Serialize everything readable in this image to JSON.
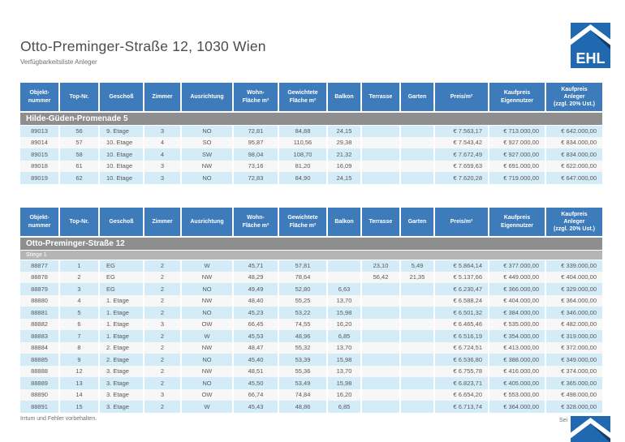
{
  "header": {
    "title": "Otto-Preminger-Straße 12, 1030 Wien",
    "subtitle": "Verfügbarkeitsliste Anleger"
  },
  "logo": {
    "text": "EHL"
  },
  "footer": {
    "left_text": "Irrtum und Fehler vorbehalten.",
    "page_text": "Sei"
  },
  "colors": {
    "header-blue": "#3e7bba",
    "section-gray": "#8e8e8e",
    "subsection-gray": "#b5b5b5",
    "row-blue": "#d4ecf8",
    "row-white": "#f7f7f7",
    "text-gray": "#57585a",
    "title-gray": "#4c4c4e",
    "logo-blue": "#2068af",
    "logo-navy": "#173a66"
  },
  "columns": [
    {
      "id": "objektnummer",
      "label": [
        "Objekt-",
        "nummer"
      ]
    },
    {
      "id": "top-nr",
      "label": [
        "Top-Nr."
      ]
    },
    {
      "id": "geschoss",
      "label": [
        "Geschoß"
      ]
    },
    {
      "id": "zimmer",
      "label": [
        "Zimmer"
      ]
    },
    {
      "id": "ausrichtung",
      "label": [
        "Ausrichtung"
      ]
    },
    {
      "id": "wohnflaeche",
      "label": [
        "Wohn-",
        "Fläche m²"
      ]
    },
    {
      "id": "gewichtete-flaeche",
      "label": [
        "Gewichtete",
        "Fläche m²"
      ]
    },
    {
      "id": "balkon",
      "label": [
        "Balkon"
      ]
    },
    {
      "id": "terrasse",
      "label": [
        "Terrasse"
      ]
    },
    {
      "id": "garten",
      "label": [
        "Garten"
      ]
    },
    {
      "id": "preis-m2",
      "label": [
        "Preis/m²"
      ]
    },
    {
      "id": "kaufpreis-eigennutzer",
      "label": [
        "Kaufpreis",
        "Eigennutzer"
      ]
    },
    {
      "id": "kaufpreis-anleger",
      "label": [
        "Kaufpreis",
        "Anleger",
        "(zzgl. 20% Ust.)"
      ]
    }
  ],
  "tables": [
    {
      "section": "Hilde-Güden-Promenade 5",
      "subsection": null,
      "rows": [
        [
          "89013",
          "56",
          "9. Etage",
          "3",
          "NO",
          "72,81",
          "84,88",
          "24,15",
          "",
          "",
          "€ 7.563,17",
          "€ 713.000,00",
          "€ 642.000,00"
        ],
        [
          "89014",
          "57",
          "10. Etage",
          "4",
          "SO",
          "95,87",
          "110,56",
          "29,38",
          "",
          "",
          "€ 7.543,42",
          "€ 927.000,00",
          "€ 834.000,00"
        ],
        [
          "89015",
          "58",
          "10. Etage",
          "4",
          "SW",
          "98,04",
          "108,70",
          "21,32",
          "",
          "",
          "€ 7.672,49",
          "€ 927.000,00",
          "€ 834.000,00"
        ],
        [
          "89018",
          "61",
          "10. Etage",
          "3",
          "NW",
          "73,16",
          "81,20",
          "16,09",
          "",
          "",
          "€ 7.659,63",
          "€ 691.000,00",
          "€ 622.000,00"
        ],
        [
          "89019",
          "62",
          "10. Etage",
          "3",
          "NO",
          "72,83",
          "84,90",
          "24,15",
          "",
          "",
          "€ 7.620,28",
          "€ 719.000,00",
          "€ 647.000,00"
        ]
      ]
    },
    {
      "section": "Otto-Preminger-Straße 12",
      "subsection": "Stiege 1",
      "rows": [
        [
          "88877",
          "1",
          "EG",
          "2",
          "W",
          "45,71",
          "57,81",
          "",
          "23,10",
          "5,49",
          "€ 5.864,14",
          "€ 377.000,00",
          "€ 339.000,00"
        ],
        [
          "88878",
          "2",
          "EG",
          "2",
          "NW",
          "48,29",
          "78,64",
          "",
          "56,42",
          "21,35",
          "€ 5.137,66",
          "€ 449.000,00",
          "€ 404.000,00"
        ],
        [
          "88879",
          "3",
          "EG",
          "2",
          "NO",
          "49,49",
          "52,80",
          "6,63",
          "",
          "",
          "€ 6.230,47",
          "€ 366.000,00",
          "€ 329.000,00"
        ],
        [
          "88880",
          "4",
          "1. Etage",
          "2",
          "NW",
          "48,40",
          "55,25",
          "13,70",
          "",
          "",
          "€ 6.588,24",
          "€ 404.000,00",
          "€ 364.000,00"
        ],
        [
          "88881",
          "5",
          "1. Etage",
          "2",
          "NO",
          "45,23",
          "53,22",
          "15,98",
          "",
          "",
          "€ 6.501,32",
          "€ 384.000,00",
          "€ 346.000,00"
        ],
        [
          "88882",
          "6",
          "1. Etage",
          "3",
          "OW",
          "66,45",
          "74,55",
          "16,20",
          "",
          "",
          "€ 6.465,46",
          "€ 535.000,00",
          "€ 482.000,00"
        ],
        [
          "88883",
          "7",
          "1. Etage",
          "2",
          "W",
          "45,53",
          "48,96",
          "6,85",
          "",
          "",
          "€ 6.516,19",
          "€ 354.000,00",
          "€ 319.000,00"
        ],
        [
          "88884",
          "8",
          "2. Etage",
          "2",
          "NW",
          "48,47",
          "55,32",
          "13,70",
          "",
          "",
          "€ 6.724,51",
          "€ 413.000,00",
          "€ 372.000,00"
        ],
        [
          "88885",
          "9",
          "2. Etage",
          "2",
          "NO",
          "45,40",
          "53,39",
          "15,98",
          "",
          "",
          "€ 6.536,80",
          "€ 388.000,00",
          "€ 349.000,00"
        ],
        [
          "88888",
          "12",
          "3. Etage",
          "2",
          "NW",
          "48,51",
          "55,36",
          "13,70",
          "",
          "",
          "€ 6.755,78",
          "€ 416.000,00",
          "€ 374.000,00"
        ],
        [
          "88889",
          "13",
          "3. Etage",
          "2",
          "NO",
          "45,50",
          "53,49",
          "15,98",
          "",
          "",
          "€ 6.823,71",
          "€ 405.000,00",
          "€ 365.000,00"
        ],
        [
          "88890",
          "14",
          "3. Etage",
          "3",
          "OW",
          "66,74",
          "74,84",
          "16,20",
          "",
          "",
          "€ 6.654,20",
          "€ 553.000,00",
          "€ 498.000,00"
        ],
        [
          "88891",
          "15",
          "3. Etage",
          "2",
          "W",
          "45,43",
          "48,86",
          "6,85",
          "",
          "",
          "€ 6.713,74",
          "€ 364.000,00",
          "€ 328.000,00"
        ]
      ]
    }
  ]
}
